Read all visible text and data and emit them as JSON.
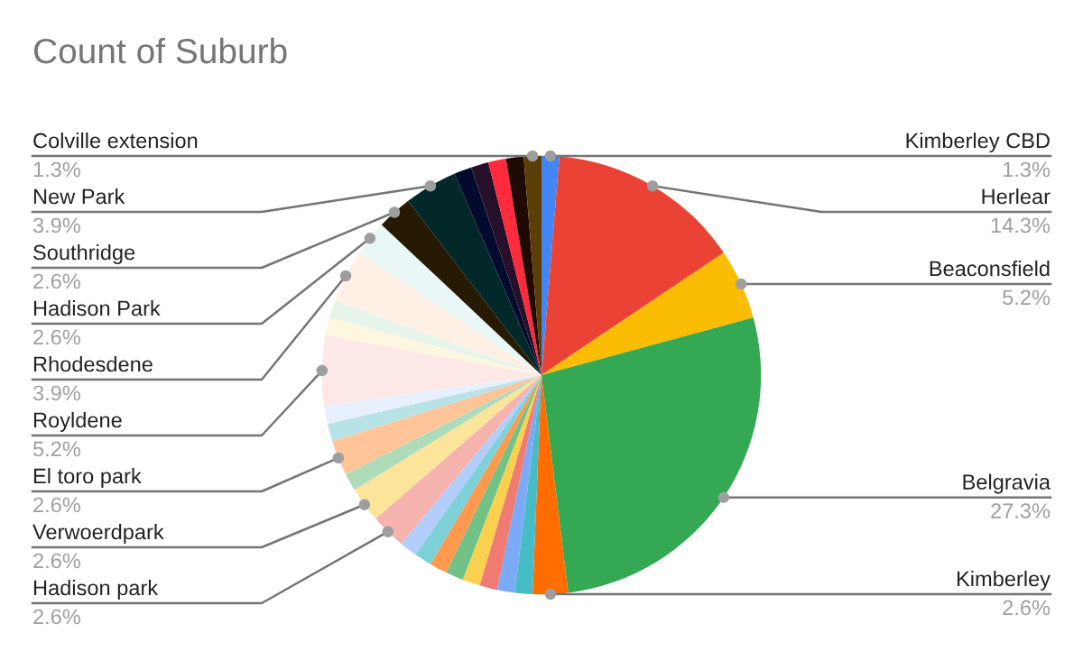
{
  "chart_data": {
    "type": "pie",
    "title": "Count of Suburb",
    "categories": [
      "Kimberley CBD",
      "Herlear",
      "Beaconsfield",
      "Belgravia",
      "Kimberley",
      null,
      null,
      null,
      null,
      null,
      null,
      null,
      null,
      "Hadison park",
      "Verwoerdpark",
      null,
      "El toro park",
      null,
      null,
      "Royldene",
      null,
      null,
      "Rhodesdene",
      "Hadison Park",
      "Southridge",
      "New Park",
      null,
      null,
      null,
      null,
      "Colville extension"
    ],
    "values": [
      1.3,
      14.3,
      5.2,
      27.3,
      2.6,
      1.3,
      1.3,
      1.3,
      1.3,
      1.3,
      1.3,
      1.3,
      1.3,
      2.6,
      2.6,
      1.3,
      2.6,
      1.3,
      1.3,
      5.2,
      1.3,
      1.3,
      3.9,
      2.6,
      2.6,
      3.9,
      1.3,
      1.3,
      1.3,
      1.3,
      1.3
    ],
    "value_labels": [
      "1.3%",
      "14.3%",
      "5.2%",
      "27.3%",
      "2.6%",
      null,
      null,
      null,
      null,
      null,
      null,
      null,
      null,
      "2.6%",
      "2.6%",
      null,
      "2.6%",
      null,
      null,
      "5.2%",
      null,
      null,
      "3.9%",
      "2.6%",
      "2.6%",
      "3.9%",
      null,
      null,
      null,
      null,
      "1.3%"
    ],
    "colors": [
      "#4285f4",
      "#ea4335",
      "#fbbc04",
      "#34a853",
      "#ff6d01",
      "#46bdc6",
      "#7baaf8",
      "#f07b72",
      "#fcd04f",
      "#71c287",
      "#ff994d",
      "#7ed1d7",
      "#b3cefb",
      "#f7b4ae",
      "#fde49b",
      "#aedcba",
      "#ffc599",
      "#b7e3e6",
      "#e8f0fe",
      "#fde8e8",
      "#fef7e0",
      "#e6f4ea",
      "#fef0e5",
      "#eaf7f7",
      "#271a03",
      "#03282a",
      "#020b2e",
      "#27112a",
      "#ff2a3b",
      "#1f0a06",
      "#5b3f07"
    ]
  }
}
